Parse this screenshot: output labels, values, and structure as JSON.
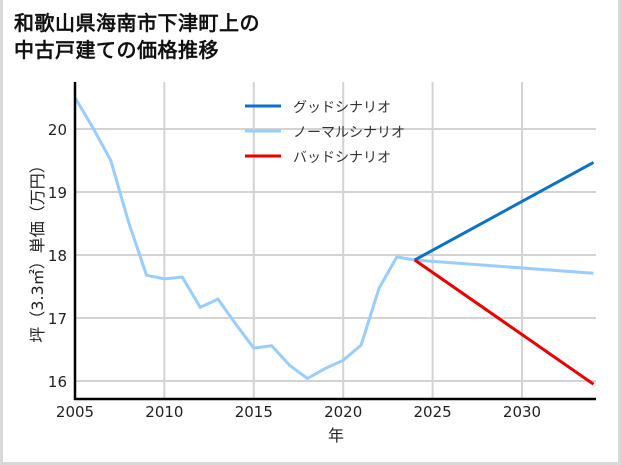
{
  "title": "和歌山県海南市下津町上の\n中古戸建ての価格推移",
  "chart_data": {
    "type": "line",
    "title": "和歌山県海南市下津町上の中古戸建ての価格推移",
    "xlabel": "年",
    "ylabel": "坪（3.3㎡）単価（万円）",
    "xlim": [
      2005,
      2034
    ],
    "ylim": [
      15.75,
      20.75
    ],
    "xticks": [
      2005,
      2010,
      2015,
      2020,
      2025,
      2030
    ],
    "yticks": [
      16,
      17,
      18,
      19,
      20
    ],
    "grid": true,
    "legend_position": "upper center",
    "series": [
      {
        "name": "グッドシナリオ",
        "color": "#0a72c8",
        "x": [
          2024,
          2034
        ],
        "values": [
          17.92,
          19.47
        ]
      },
      {
        "name": "ノーマルシナリオ",
        "color": "#99ccff",
        "x": [
          2005,
          2006,
          2007,
          2008,
          2009,
          2010,
          2011,
          2012,
          2013,
          2014,
          2015,
          2016,
          2017,
          2018,
          2019,
          2020,
          2021,
          2022,
          2023,
          2024,
          2034
        ],
        "values": [
          20.5,
          20.02,
          19.5,
          18.52,
          17.68,
          17.62,
          17.65,
          17.17,
          17.3,
          16.9,
          16.52,
          16.56,
          16.25,
          16.04,
          16.2,
          16.33,
          16.57,
          17.47,
          17.97,
          17.92,
          17.71
        ]
      },
      {
        "name": "バッドシナリオ",
        "color": "#ee0000",
        "x": [
          2024,
          2034
        ],
        "values": [
          17.92,
          15.95
        ]
      }
    ]
  }
}
